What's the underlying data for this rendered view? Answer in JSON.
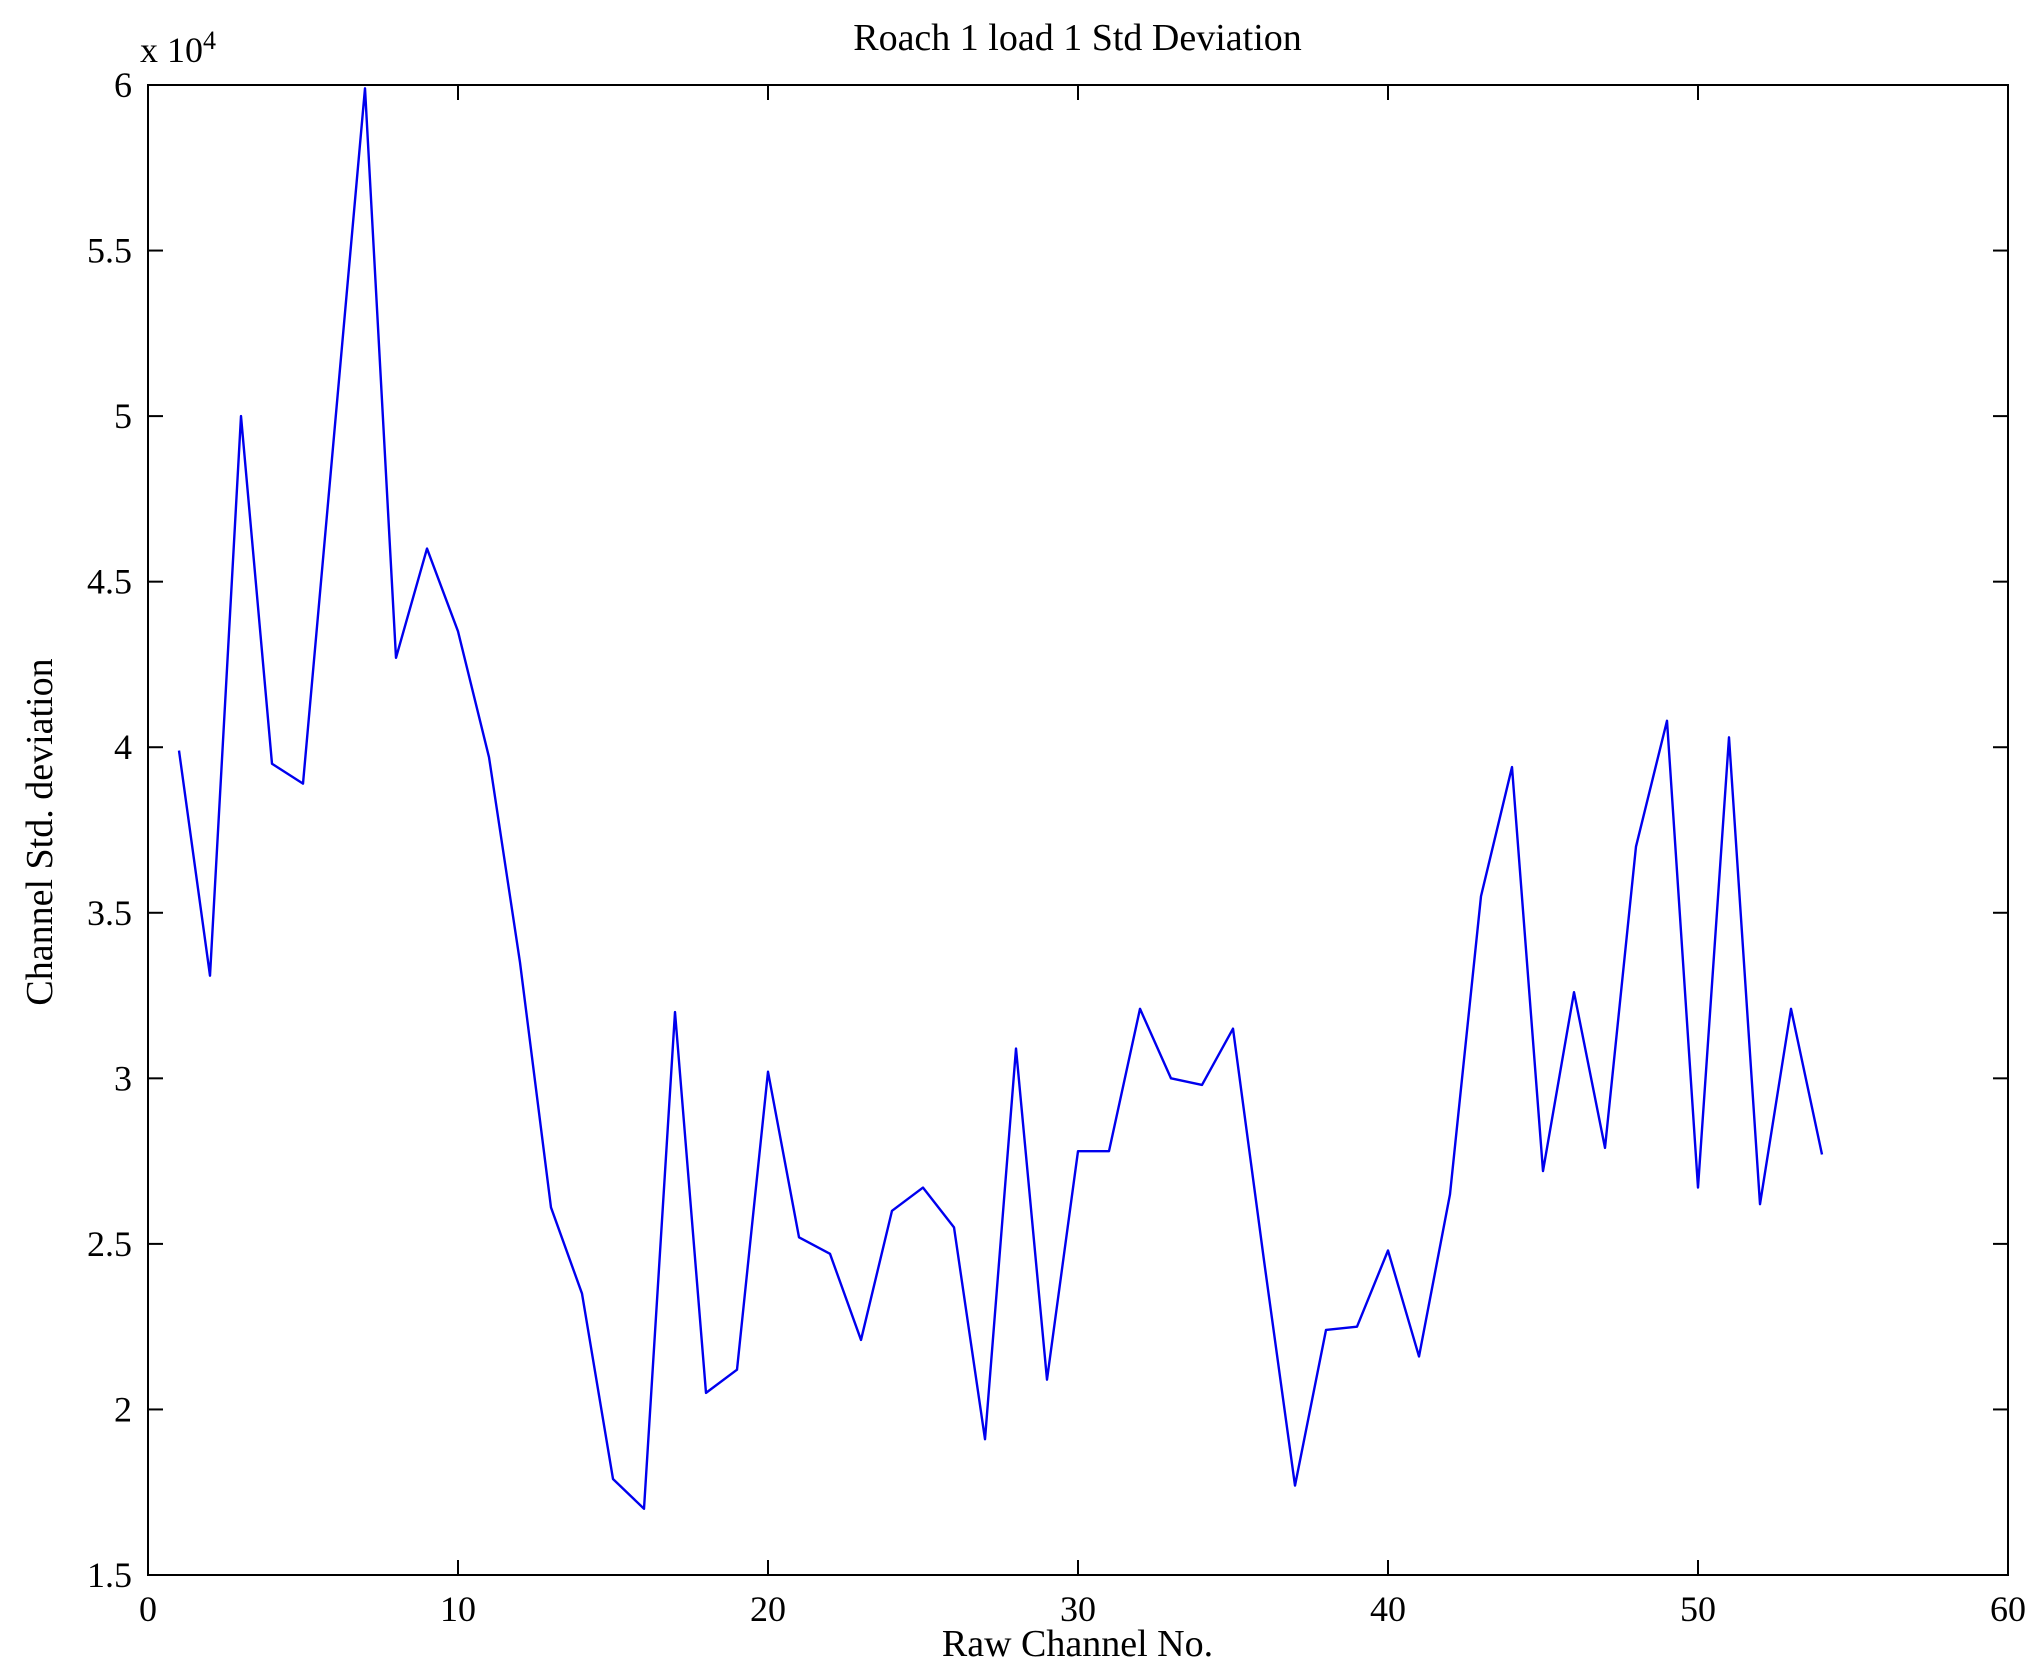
{
  "chart_data": {
    "type": "line",
    "title": "Roach 1 load 1 Std Deviation",
    "xlabel": "Raw Channel No.",
    "ylabel": "Channel Std. deviation",
    "y_multiplier_base": "x 10",
    "y_multiplier_exponent": "4",
    "xlim": [
      0,
      60
    ],
    "ylim": [
      15000,
      60000
    ],
    "x_ticks": [
      0,
      10,
      20,
      30,
      40,
      50,
      60
    ],
    "x_tick_labels": [
      "0",
      "10",
      "20",
      "30",
      "40",
      "50",
      "60"
    ],
    "y_ticks": [
      15000,
      20000,
      25000,
      30000,
      35000,
      40000,
      45000,
      50000,
      55000,
      60000
    ],
    "y_tick_labels": [
      "1.5",
      "2",
      "2.5",
      "3",
      "3.5",
      "4",
      "4.5",
      "5",
      "5.5",
      "6"
    ],
    "grid": false,
    "legend": false,
    "line_color": "#0000ee",
    "axis_color": "#000000",
    "background_color": "#ffffff",
    "x": [
      1,
      2,
      3,
      4,
      5,
      6,
      7,
      8,
      9,
      10,
      11,
      12,
      13,
      14,
      15,
      16,
      17,
      18,
      19,
      20,
      21,
      22,
      23,
      24,
      25,
      26,
      27,
      28,
      29,
      30,
      31,
      32,
      33,
      34,
      35,
      36,
      37,
      38,
      39,
      40,
      41,
      42,
      43,
      44,
      45,
      46,
      47,
      48,
      49,
      50,
      51,
      52,
      53,
      54
    ],
    "values": [
      39900,
      33100,
      50000,
      39500,
      38900,
      49400,
      59900,
      42700,
      46000,
      43500,
      39700,
      33500,
      26100,
      23500,
      17900,
      17000,
      32000,
      20500,
      21200,
      30200,
      25200,
      24700,
      22100,
      26000,
      26700,
      25500,
      19100,
      30900,
      20900,
      27800,
      27800,
      32100,
      30000,
      29800,
      31500,
      24500,
      17700,
      22400,
      22500,
      24800,
      21600,
      26500,
      35500,
      39400,
      27200,
      32600,
      27900,
      37000,
      40800,
      26700,
      40300,
      26200,
      32100,
      27700
    ]
  }
}
